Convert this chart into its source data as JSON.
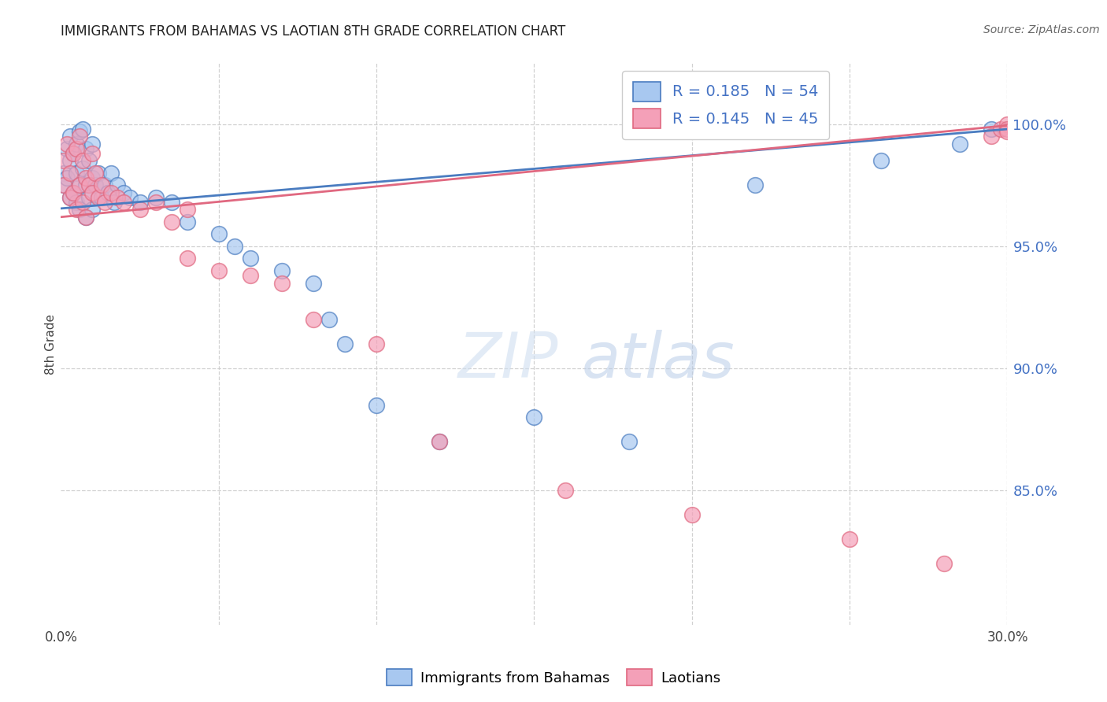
{
  "title": "IMMIGRANTS FROM BAHAMAS VS LAOTIAN 8TH GRADE CORRELATION CHART",
  "source": "Source: ZipAtlas.com",
  "ylabel": "8th Grade",
  "ytick_labels": [
    "100.0%",
    "95.0%",
    "90.0%",
    "85.0%"
  ],
  "ytick_values": [
    1.0,
    0.95,
    0.9,
    0.85
  ],
  "xlim": [
    0.0,
    0.3
  ],
  "ylim": [
    0.795,
    1.025
  ],
  "legend_r1": "R = 0.185",
  "legend_n1": "N = 54",
  "legend_r2": "R = 0.145",
  "legend_n2": "N = 45",
  "color_blue": "#a8c8f0",
  "color_pink": "#f4a0b8",
  "line_blue": "#4a7cc0",
  "line_pink": "#e06880",
  "watermark_zip": "ZIP",
  "watermark_atlas": "atlas",
  "bahamas_x": [
    0.001,
    0.001,
    0.002,
    0.002,
    0.003,
    0.003,
    0.003,
    0.004,
    0.004,
    0.005,
    0.005,
    0.005,
    0.006,
    0.006,
    0.006,
    0.007,
    0.007,
    0.008,
    0.008,
    0.008,
    0.009,
    0.009,
    0.01,
    0.01,
    0.01,
    0.011,
    0.012,
    0.013,
    0.014,
    0.015,
    0.016,
    0.017,
    0.018,
    0.02,
    0.022,
    0.025,
    0.03,
    0.035,
    0.04,
    0.05,
    0.055,
    0.06,
    0.07,
    0.08,
    0.085,
    0.09,
    0.1,
    0.12,
    0.15,
    0.18,
    0.22,
    0.26,
    0.285,
    0.295
  ],
  "bahamas_y": [
    0.98,
    0.975,
    0.99,
    0.978,
    0.985,
    0.995,
    0.97,
    0.988,
    0.972,
    0.992,
    0.98,
    0.968,
    0.997,
    0.975,
    0.965,
    0.998,
    0.982,
    0.99,
    0.975,
    0.962,
    0.985,
    0.97,
    0.992,
    0.978,
    0.965,
    0.975,
    0.98,
    0.97,
    0.975,
    0.972,
    0.98,
    0.968,
    0.975,
    0.972,
    0.97,
    0.968,
    0.97,
    0.968,
    0.96,
    0.955,
    0.95,
    0.945,
    0.94,
    0.935,
    0.92,
    0.91,
    0.885,
    0.87,
    0.88,
    0.87,
    0.975,
    0.985,
    0.992,
    0.998
  ],
  "laotian_x": [
    0.001,
    0.001,
    0.002,
    0.003,
    0.003,
    0.004,
    0.004,
    0.005,
    0.005,
    0.006,
    0.006,
    0.007,
    0.007,
    0.008,
    0.008,
    0.009,
    0.01,
    0.01,
    0.011,
    0.012,
    0.013,
    0.014,
    0.016,
    0.018,
    0.02,
    0.025,
    0.03,
    0.035,
    0.04,
    0.05,
    0.06,
    0.07,
    0.08,
    0.1,
    0.12,
    0.04,
    0.16,
    0.2,
    0.25,
    0.28,
    0.295,
    0.298,
    0.3,
    0.3,
    0.3
  ],
  "laotian_y": [
    0.985,
    0.975,
    0.992,
    0.98,
    0.97,
    0.988,
    0.972,
    0.99,
    0.965,
    0.995,
    0.975,
    0.985,
    0.968,
    0.978,
    0.962,
    0.975,
    0.988,
    0.972,
    0.98,
    0.97,
    0.975,
    0.968,
    0.972,
    0.97,
    0.968,
    0.965,
    0.968,
    0.96,
    0.945,
    0.94,
    0.938,
    0.935,
    0.92,
    0.91,
    0.87,
    0.965,
    0.85,
    0.84,
    0.83,
    0.82,
    0.995,
    0.998,
    1.0,
    0.998,
    0.997
  ],
  "blue_line_x": [
    0.0,
    0.3
  ],
  "blue_line_y": [
    0.9655,
    0.998
  ],
  "pink_line_x": [
    0.0,
    0.3
  ],
  "pink_line_y": [
    0.962,
    0.9995
  ]
}
